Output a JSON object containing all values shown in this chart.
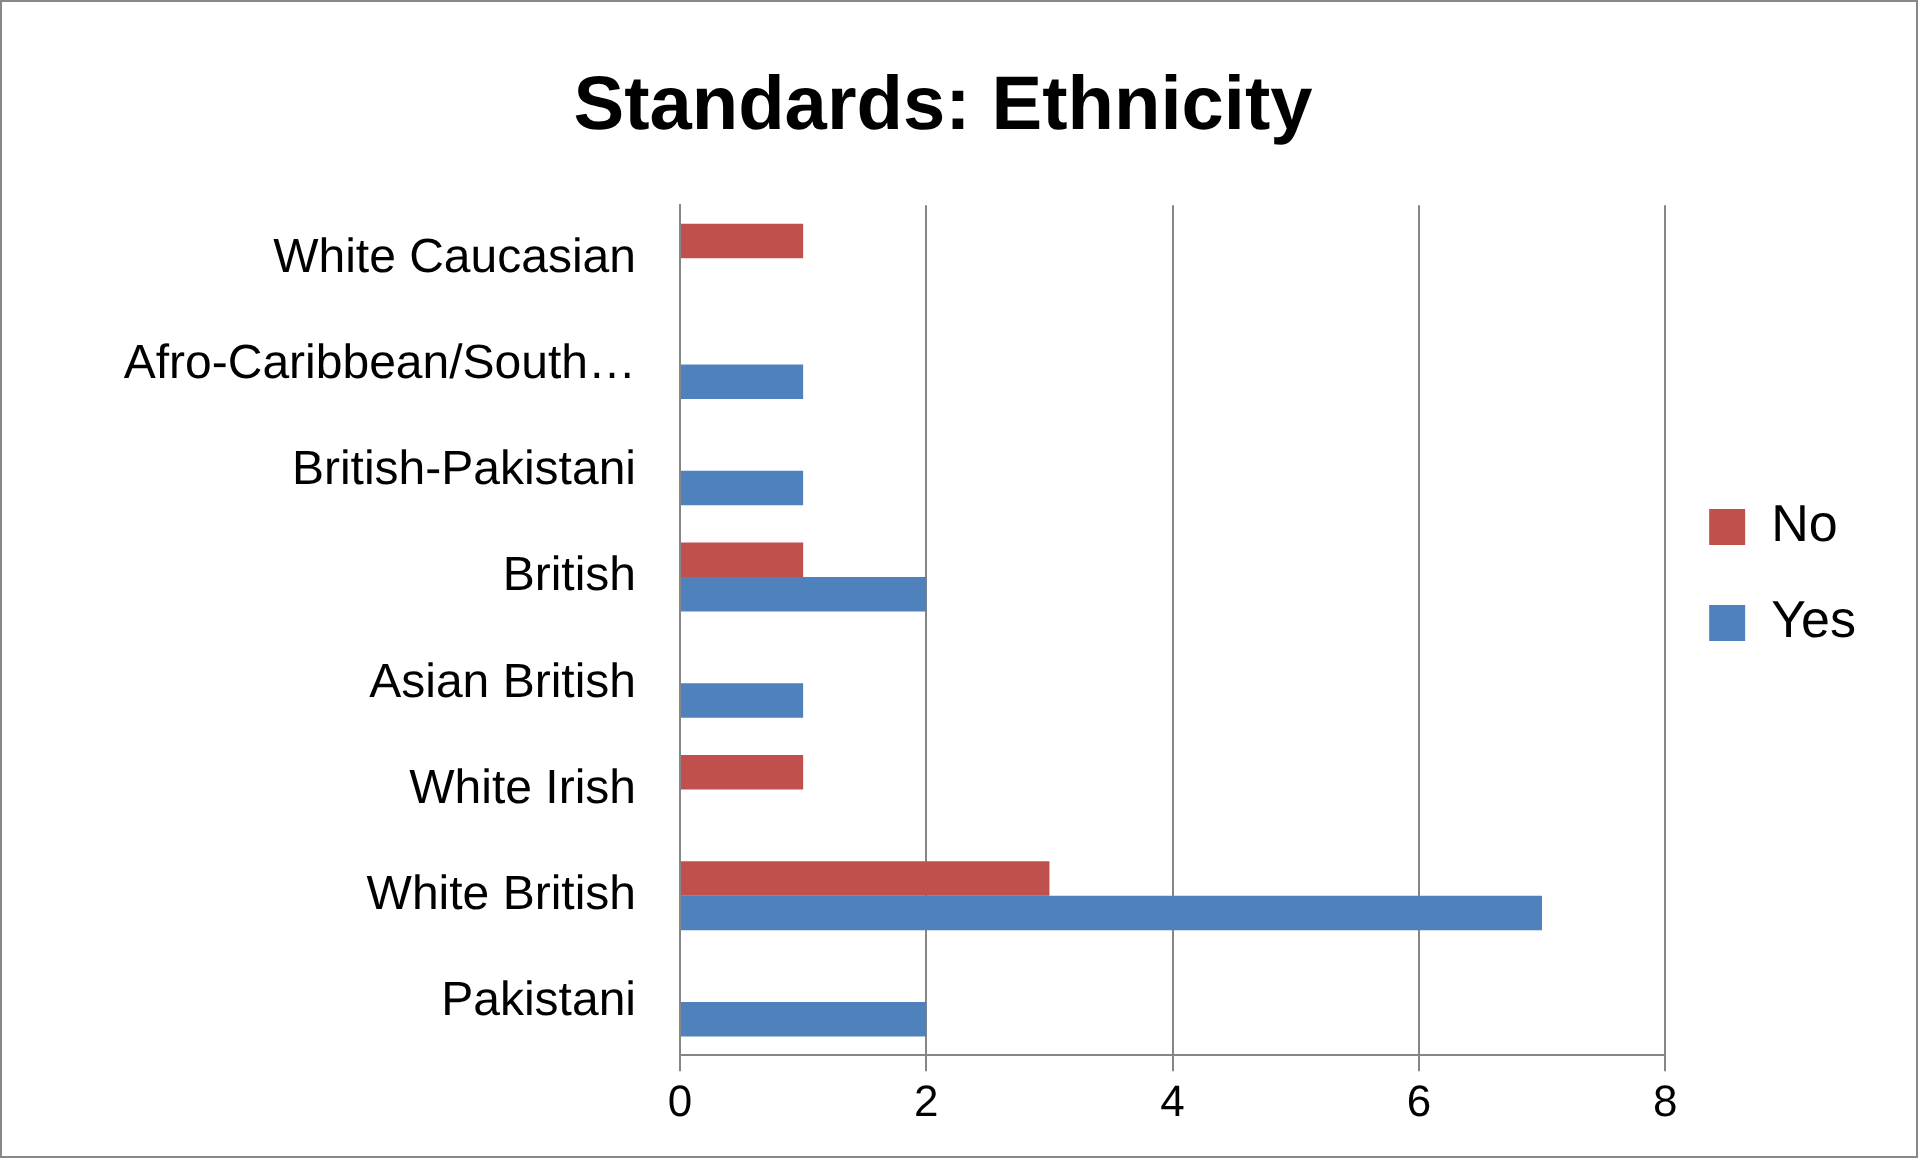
{
  "chart_data": {
    "type": "bar",
    "orientation": "horizontal",
    "title": "Standards: Ethnicity",
    "categories": [
      "White Caucasian",
      "Afro-Caribbean/South…",
      "British-Pakistani",
      "British",
      "Asian British",
      "White Irish",
      "White British",
      "Pakistani"
    ],
    "series": [
      {
        "name": "No",
        "color": "#c0504d",
        "values": [
          1,
          null,
          null,
          1,
          null,
          1,
          3,
          null
        ]
      },
      {
        "name": "Yes",
        "color": "#4f81bd",
        "values": [
          null,
          1,
          1,
          2,
          1,
          null,
          7,
          2
        ]
      }
    ],
    "xlim": [
      0,
      8
    ],
    "xticks": [
      0,
      2,
      4,
      6,
      8
    ],
    "grid": "x",
    "legend": "right"
  }
}
